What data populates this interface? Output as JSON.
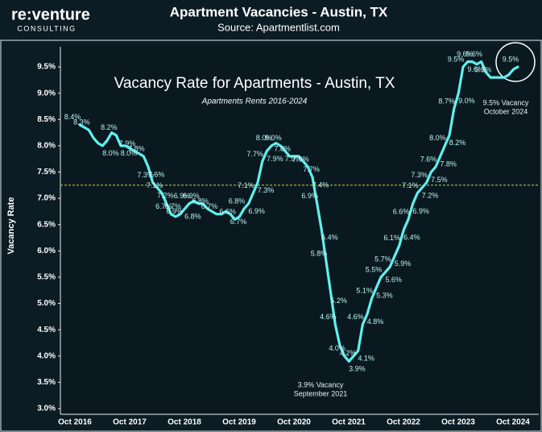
{
  "brand": "re:venture",
  "brand_sub": "CONSULTING",
  "chart_data": {
    "type": "line",
    "title": "Apartment Vacancies - Austin, TX",
    "source": "Source: Apartmentlist.com",
    "inner_title": "Vacancy Rate for Apartments - Austin, TX",
    "subtitle": "Apartments Rents  2016-2024",
    "y_label": "Vacancy Rate",
    "categories": [
      "Oct 2016",
      null,
      null,
      null,
      null,
      null,
      null,
      null,
      null,
      null,
      null,
      null,
      "Oct 2017",
      null,
      null,
      null,
      null,
      null,
      null,
      null,
      null,
      null,
      null,
      null,
      "Oct 2018",
      null,
      null,
      null,
      null,
      null,
      null,
      null,
      null,
      null,
      null,
      null,
      "Oct 2019",
      null,
      null,
      null,
      null,
      null,
      null,
      null,
      null,
      null,
      null,
      null,
      "Oct 2020",
      null,
      null,
      null,
      null,
      null,
      null,
      null,
      null,
      null,
      null,
      null,
      "Oct 2021",
      null,
      null,
      null,
      null,
      null,
      null,
      null,
      null,
      null,
      null,
      null,
      "Oct 2022",
      null,
      null,
      null,
      null,
      null,
      null,
      null,
      null,
      null,
      null,
      null,
      "Oct 2023",
      null,
      null,
      null,
      null,
      null,
      null,
      null,
      null,
      null,
      null,
      null,
      "Oct 2024"
    ],
    "series": [
      {
        "name": "Vacancy Rate",
        "color": "#5ff0ee",
        "values": [
          8.4,
          8.35,
          8.3,
          8.15,
          8.05,
          8.0,
          8.1,
          8.25,
          8.2,
          8.0,
          8.0,
          7.95,
          7.9,
          7.85,
          7.8,
          7.6,
          7.3,
          7.2,
          7.1,
          6.9,
          6.7,
          6.65,
          6.7,
          6.8,
          6.9,
          6.95,
          6.9,
          6.9,
          6.8,
          6.75,
          6.7,
          6.7,
          6.75,
          6.7,
          6.6,
          6.65,
          6.8,
          6.9,
          7.1,
          7.3,
          7.7,
          7.9,
          8.0,
          8.05,
          8.0,
          7.9,
          7.8,
          7.8,
          7.8,
          7.7,
          7.6,
          7.4,
          6.9,
          6.4,
          5.8,
          5.2,
          4.6,
          4.2,
          4.0,
          3.9,
          4.0,
          4.1,
          4.6,
          4.8,
          5.1,
          5.3,
          5.5,
          5.6,
          5.7,
          5.9,
          6.1,
          6.4,
          6.6,
          6.9,
          7.1,
          7.2,
          7.3,
          7.5,
          7.6,
          7.8,
          8.0,
          8.2,
          8.7,
          9.0,
          9.5,
          9.6,
          9.6,
          9.55,
          9.6,
          9.4,
          9.3,
          9.3,
          9.3,
          9.3,
          9.35,
          9.45,
          9.5
        ],
        "value_labels": [
          "8.4%",
          null,
          "8.3%",
          null,
          null,
          "8.0%",
          null,
          null,
          "8.2%",
          "8.0%",
          null,
          null,
          "7.9%",
          null,
          "7.8%",
          "7.6%",
          "7.3%",
          "7.2%",
          "7.1%",
          "6.9%",
          "6.7%",
          null,
          "6.7%",
          "6.8%",
          "6.9%",
          null,
          "6.9%",
          null,
          "6.8%",
          null,
          "6.7%",
          null,
          null,
          "6.7%",
          "6.6%",
          null,
          "6.8%",
          "6.9%",
          "7.1%",
          "7.3%",
          "7.7%",
          "7.9%",
          "8.0%",
          null,
          "8.0%",
          "7.9%",
          "7.8%",
          null,
          null,
          "7.7%",
          "7.6%",
          "7.4%",
          "6.9%",
          "6.4%",
          "5.8%",
          "5.2%",
          "4.6%",
          "4.2%",
          "4.0%",
          "3.9%",
          null,
          "4.1%",
          "4.6%",
          "4.8%",
          "5.1%",
          "5.3%",
          "5.5%",
          "5.6%",
          "5.7%",
          "5.9%",
          "6.1%",
          "6.4%",
          "6.6%",
          "6.9%",
          "7.1%",
          "7.2%",
          "7.3%",
          "7.5%",
          "7.6%",
          "7.8%",
          "8.0%",
          "8.2%",
          "8.7%",
          "9.0%",
          "9.5%",
          "9.6%",
          "9.6%",
          null,
          "9.6%",
          null,
          "9.3%",
          null,
          null,
          null,
          null,
          null,
          "9.5%"
        ]
      }
    ],
    "ylim": [
      2.9,
      9.85
    ],
    "yticks": [
      {
        "value": 3.0,
        "label": "3.0%"
      },
      {
        "value": 3.5,
        "label": "3.5%"
      },
      {
        "value": 4.0,
        "label": "4.0%"
      },
      {
        "value": 4.5,
        "label": "4.5%"
      },
      {
        "value": 5.0,
        "label": "5.0%"
      },
      {
        "value": 5.5,
        "label": "5.5%"
      },
      {
        "value": 6.0,
        "label": "6.0%"
      },
      {
        "value": 6.5,
        "label": "6.5%"
      },
      {
        "value": 7.0,
        "label": "7.0%"
      },
      {
        "value": 7.5,
        "label": "7.5%"
      },
      {
        "value": 8.0,
        "label": "8.0%"
      },
      {
        "value": 8.5,
        "label": "8.5%"
      },
      {
        "value": 9.0,
        "label": "9.0%"
      },
      {
        "value": 9.5,
        "label": "9.5%"
      }
    ],
    "reference_line": {
      "value": 7.25,
      "color": "#c8d23a"
    },
    "annotations": [
      {
        "lines": [
          "3.9% Vacancy",
          "September 2021"
        ]
      },
      {
        "lines": [
          "9.5% Vacancy",
          "October 2024"
        ]
      }
    ]
  }
}
